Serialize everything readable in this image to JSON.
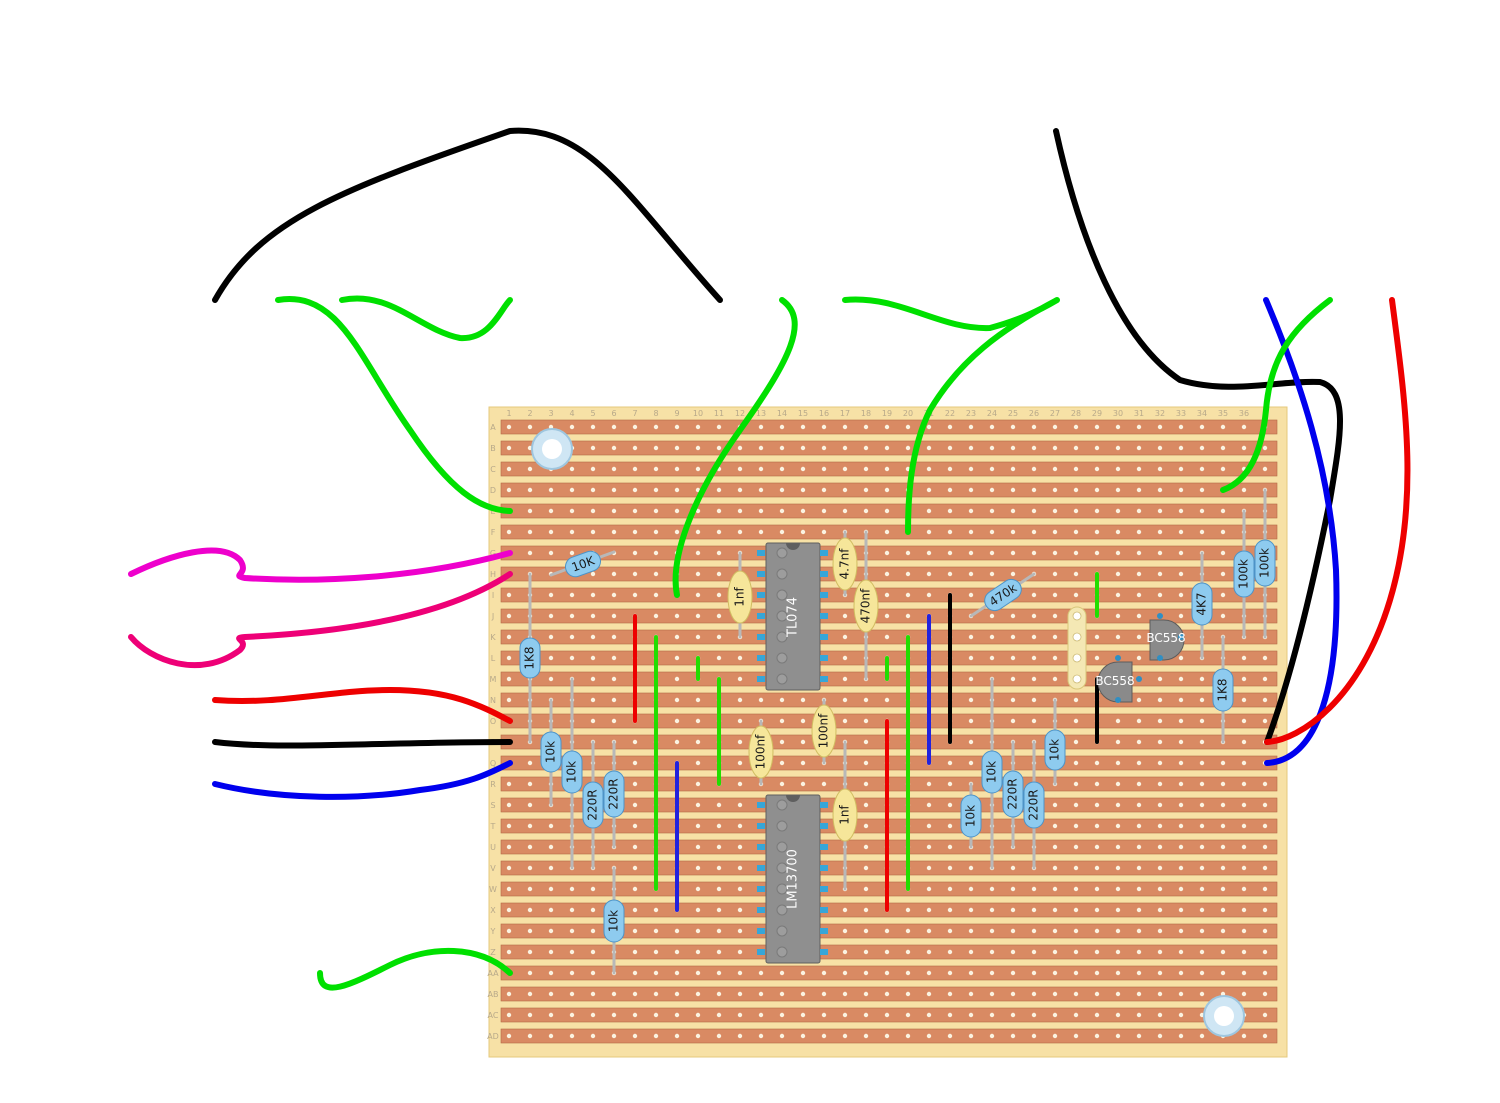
{
  "board": {
    "column_numbers": [
      "1",
      "2",
      "3",
      "4",
      "5",
      "6",
      "7",
      "8",
      "9",
      "10",
      "11",
      "12",
      "13",
      "14",
      "15",
      "16",
      "17",
      "18",
      "19",
      "20",
      "21",
      "22",
      "23",
      "24",
      "25",
      "26",
      "27",
      "28",
      "29",
      "30",
      "31",
      "32",
      "33",
      "34",
      "35",
      "36"
    ],
    "row_letters": [
      "A",
      "B",
      "C",
      "D",
      "E",
      "F",
      "G",
      "H",
      "I",
      "J",
      "K",
      "L",
      "M",
      "N",
      "O",
      "P",
      "Q",
      "R",
      "S",
      "T",
      "U",
      "V",
      "W",
      "X",
      "Y",
      "Z",
      "AA",
      "AB",
      "AC",
      "AD"
    ]
  },
  "ics": [
    {
      "name": "ic-tl074",
      "label": "TL074"
    },
    {
      "name": "ic-lm13700",
      "label": "LM13700"
    }
  ],
  "resistors": [
    {
      "name": "resistor-10k-top",
      "label": "10K"
    },
    {
      "name": "resistor-1k8-left",
      "label": "1K8"
    },
    {
      "name": "resistor-10k-a",
      "label": "10k"
    },
    {
      "name": "resistor-10k-b",
      "label": "10k"
    },
    {
      "name": "resistor-220r-a",
      "label": "220R"
    },
    {
      "name": "resistor-220r-b",
      "label": "220R"
    },
    {
      "name": "resistor-10k-bottom",
      "label": "10k"
    },
    {
      "name": "resistor-470k",
      "label": "470k"
    },
    {
      "name": "resistor-10k-c",
      "label": "10k"
    },
    {
      "name": "resistor-10k-d",
      "label": "10k"
    },
    {
      "name": "resistor-220r-c",
      "label": "220R"
    },
    {
      "name": "resistor-220r-d",
      "label": "220R"
    },
    {
      "name": "resistor-10k-e",
      "label": "10k"
    },
    {
      "name": "resistor-4k7",
      "label": "4K7"
    },
    {
      "name": "resistor-100k-a",
      "label": "100k"
    },
    {
      "name": "resistor-100k-b",
      "label": "100k"
    },
    {
      "name": "resistor-1k8-right",
      "label": "1K8"
    }
  ],
  "capacitors": [
    {
      "name": "capacitor-1nf-top",
      "label": "1nf"
    },
    {
      "name": "capacitor-4-7nf",
      "label": "4.7nf"
    },
    {
      "name": "capacitor-470nf",
      "label": "470nf"
    },
    {
      "name": "capacitor-100nf-a",
      "label": "100nf"
    },
    {
      "name": "capacitor-100nf-b",
      "label": "100nf"
    },
    {
      "name": "capacitor-1nf-bottom",
      "label": "1nf"
    }
  ],
  "transistors": [
    {
      "name": "transistor-bc558-upper",
      "label": "BC558"
    },
    {
      "name": "transistor-bc558-lower",
      "label": "BC558"
    }
  ],
  "colors": {
    "strip": "#d98a63",
    "board": "#f7e1a6",
    "wire_black": "#000000",
    "wire_green": "#00e000",
    "wire_red": "#ee0000",
    "wire_blue": "#0000ee",
    "wire_magenta": "#ee00cc",
    "wire_pink": "#ee0077",
    "link_green": "#22dd00",
    "link_red": "#ee0000",
    "link_blue": "#2222dd",
    "link_black": "#000000"
  }
}
